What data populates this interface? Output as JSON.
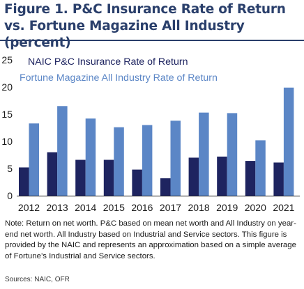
{
  "figure": {
    "title": "Figure 1. P&C Insurance Rate of Return vs. Fortune Magazine All Industry (percent)",
    "note": "Note: Return on net worth. P&C based on mean net worth and All Industry on year-end net worth. All Industry based on Industrial and Service sectors. This figure is provided by the NAIC and represents an approximation based on a simple average of Fortune’s Industrial and Service sectors.",
    "sources": "Sources: NAIC, OFR"
  },
  "colors": {
    "title": "#2a3f6b",
    "naic": "#1e2460",
    "fortune": "#5b86c6",
    "axis": "#1a1a1a"
  },
  "chart_data": {
    "type": "bar",
    "categories": [
      "2012",
      "2013",
      "2014",
      "2015",
      "2016",
      "2017",
      "2018",
      "2019",
      "2020",
      "2021"
    ],
    "series": [
      {
        "name": "NAIC P&C Insurance Rate of Return",
        "values": [
          5.2,
          8.0,
          6.6,
          6.6,
          4.8,
          3.2,
          7.0,
          7.2,
          6.4,
          6.1
        ]
      },
      {
        "name": "Fortune Magazine All Industry Rate of Return",
        "values": [
          13.3,
          16.5,
          14.2,
          12.6,
          13.0,
          13.8,
          15.3,
          15.2,
          10.2,
          19.9
        ]
      }
    ],
    "ylim": [
      0,
      25
    ],
    "yticks": [
      "0",
      "5",
      "10",
      "15",
      "20",
      "25"
    ],
    "legend_position": "top-left",
    "grid": false
  }
}
